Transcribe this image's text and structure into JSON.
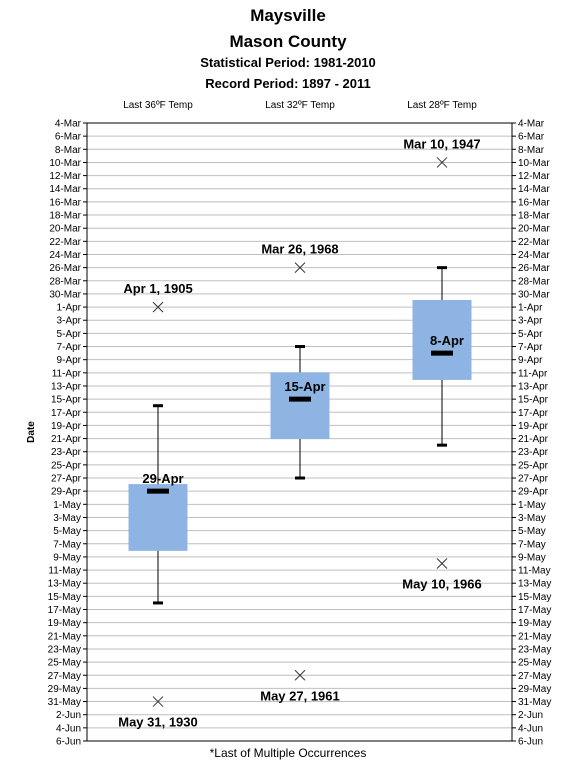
{
  "header": {
    "title": "Maysville",
    "subtitle": "Mason County",
    "statistical_period": "Statistical Period: 1981-2010",
    "record_period": "Record Period: 1897 - 2011"
  },
  "footnote": "*Last of Multiple Occurrences",
  "colors": {
    "box_fill": "#8eb4e3",
    "grid": "#bfbfbf",
    "line": "#000000"
  },
  "chart_data": {
    "type": "boxplot",
    "title": "Maysville",
    "ylabel": "Date",
    "y_axis_ticks": [
      "4-Mar",
      "6-Mar",
      "8-Mar",
      "10-Mar",
      "12-Mar",
      "14-Mar",
      "16-Mar",
      "18-Mar",
      "20-Mar",
      "22-Mar",
      "24-Mar",
      "26-Mar",
      "28-Mar",
      "30-Mar",
      "1-Apr",
      "3-Apr",
      "5-Apr",
      "7-Apr",
      "9-Apr",
      "11-Apr",
      "13-Apr",
      "15-Apr",
      "17-Apr",
      "19-Apr",
      "21-Apr",
      "23-Apr",
      "25-Apr",
      "27-Apr",
      "29-Apr",
      "1-May",
      "3-May",
      "5-May",
      "7-May",
      "9-May",
      "11-May",
      "13-May",
      "15-May",
      "17-May",
      "19-May",
      "21-May",
      "23-May",
      "25-May",
      "27-May",
      "29-May",
      "31-May",
      "2-Jun",
      "4-Jun",
      "6-Jun"
    ],
    "y_range": [
      "4-Mar",
      "6-Jun"
    ],
    "y_reversed": true,
    "grid": true,
    "series": [
      {
        "name": "Last 36ºF Temp",
        "whisker_low": "16-Apr",
        "box_low": "28-Apr",
        "median": "29-Apr",
        "median_label": "29-Apr",
        "box_high": "8-May",
        "whisker_high": "16-May",
        "records": [
          {
            "date": "1-Apr",
            "label": "Apr 1, 1905"
          },
          {
            "date": "31-May",
            "label": "May 31, 1930"
          }
        ]
      },
      {
        "name": "Last 32ºF Temp",
        "whisker_low": "7-Apr",
        "box_low": "11-Apr",
        "median": "15-Apr",
        "median_label": "15-Apr",
        "box_high": "21-Apr",
        "whisker_high": "27-Apr",
        "records": [
          {
            "date": "26-Mar",
            "label": "Mar 26, 1968"
          },
          {
            "date": "27-May",
            "label": "May 27, 1961"
          }
        ]
      },
      {
        "name": "Last 28ºF Temp",
        "whisker_low": "26-Mar",
        "box_low": "31-Mar",
        "median": "8-Apr",
        "median_label": "8-Apr",
        "box_high": "12-Apr",
        "whisker_high": "22-Apr",
        "records": [
          {
            "date": "10-Mar",
            "label": "Mar 10, 1947"
          },
          {
            "date": "10-May",
            "label": "May 10, 1966"
          }
        ]
      }
    ]
  }
}
